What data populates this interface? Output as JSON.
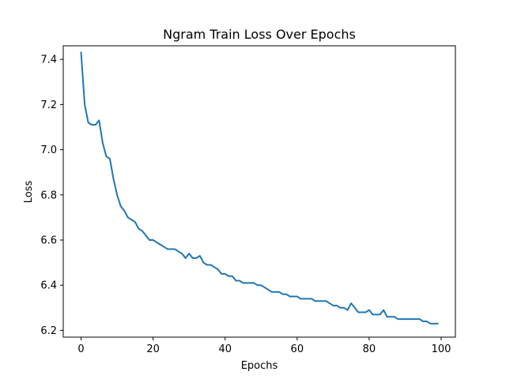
{
  "chart_data": {
    "type": "line",
    "title": "Ngram Train Loss Over Epochs",
    "xlabel": "Epochs",
    "ylabel": "Loss",
    "xlim": [
      -4.95,
      103.95
    ],
    "ylim": [
      6.17,
      7.46
    ],
    "xticks": [
      0,
      20,
      40,
      60,
      80,
      100
    ],
    "yticks": [
      6.2,
      6.4,
      6.6,
      6.8,
      7.0,
      7.2,
      7.4
    ],
    "xtick_labels": [
      "0",
      "20",
      "40",
      "60",
      "80",
      "100"
    ],
    "ytick_labels": [
      "6.2",
      "6.4",
      "6.6",
      "6.8",
      "7.0",
      "7.2",
      "7.4"
    ],
    "grid": false,
    "series": [
      {
        "color": "#1f77b4",
        "x": [
          0,
          1,
          2,
          3,
          4,
          5,
          6,
          7,
          8,
          9,
          10,
          11,
          12,
          13,
          14,
          15,
          16,
          17,
          18,
          19,
          20,
          21,
          22,
          23,
          24,
          25,
          26,
          27,
          28,
          29,
          30,
          31,
          32,
          33,
          34,
          35,
          36,
          37,
          38,
          39,
          40,
          41,
          42,
          43,
          44,
          45,
          46,
          47,
          48,
          49,
          50,
          51,
          52,
          53,
          54,
          55,
          56,
          57,
          58,
          59,
          60,
          61,
          62,
          63,
          64,
          65,
          66,
          67,
          68,
          69,
          70,
          71,
          72,
          73,
          74,
          75,
          76,
          77,
          78,
          79,
          80,
          81,
          82,
          83,
          84,
          85,
          86,
          87,
          88,
          89,
          90,
          91,
          92,
          93,
          94,
          95,
          96,
          97,
          98,
          99
        ],
        "y": [
          7.43,
          7.2,
          7.12,
          7.11,
          7.11,
          7.13,
          7.03,
          6.97,
          6.96,
          6.87,
          6.8,
          6.75,
          6.73,
          6.7,
          6.69,
          6.68,
          6.65,
          6.64,
          6.62,
          6.6,
          6.6,
          6.59,
          6.58,
          6.57,
          6.56,
          6.56,
          6.56,
          6.55,
          6.54,
          6.52,
          6.54,
          6.52,
          6.52,
          6.53,
          6.5,
          6.49,
          6.49,
          6.48,
          6.47,
          6.45,
          6.45,
          6.44,
          6.44,
          6.42,
          6.42,
          6.41,
          6.41,
          6.41,
          6.41,
          6.4,
          6.4,
          6.39,
          6.38,
          6.37,
          6.37,
          6.37,
          6.36,
          6.36,
          6.35,
          6.35,
          6.35,
          6.34,
          6.34,
          6.34,
          6.34,
          6.33,
          6.33,
          6.33,
          6.33,
          6.32,
          6.31,
          6.31,
          6.3,
          6.3,
          6.29,
          6.32,
          6.3,
          6.28,
          6.28,
          6.28,
          6.29,
          6.27,
          6.27,
          6.27,
          6.29,
          6.26,
          6.26,
          6.26,
          6.25,
          6.25,
          6.25,
          6.25,
          6.25,
          6.25,
          6.25,
          6.24,
          6.24,
          6.23,
          6.23,
          6.23
        ]
      }
    ]
  }
}
